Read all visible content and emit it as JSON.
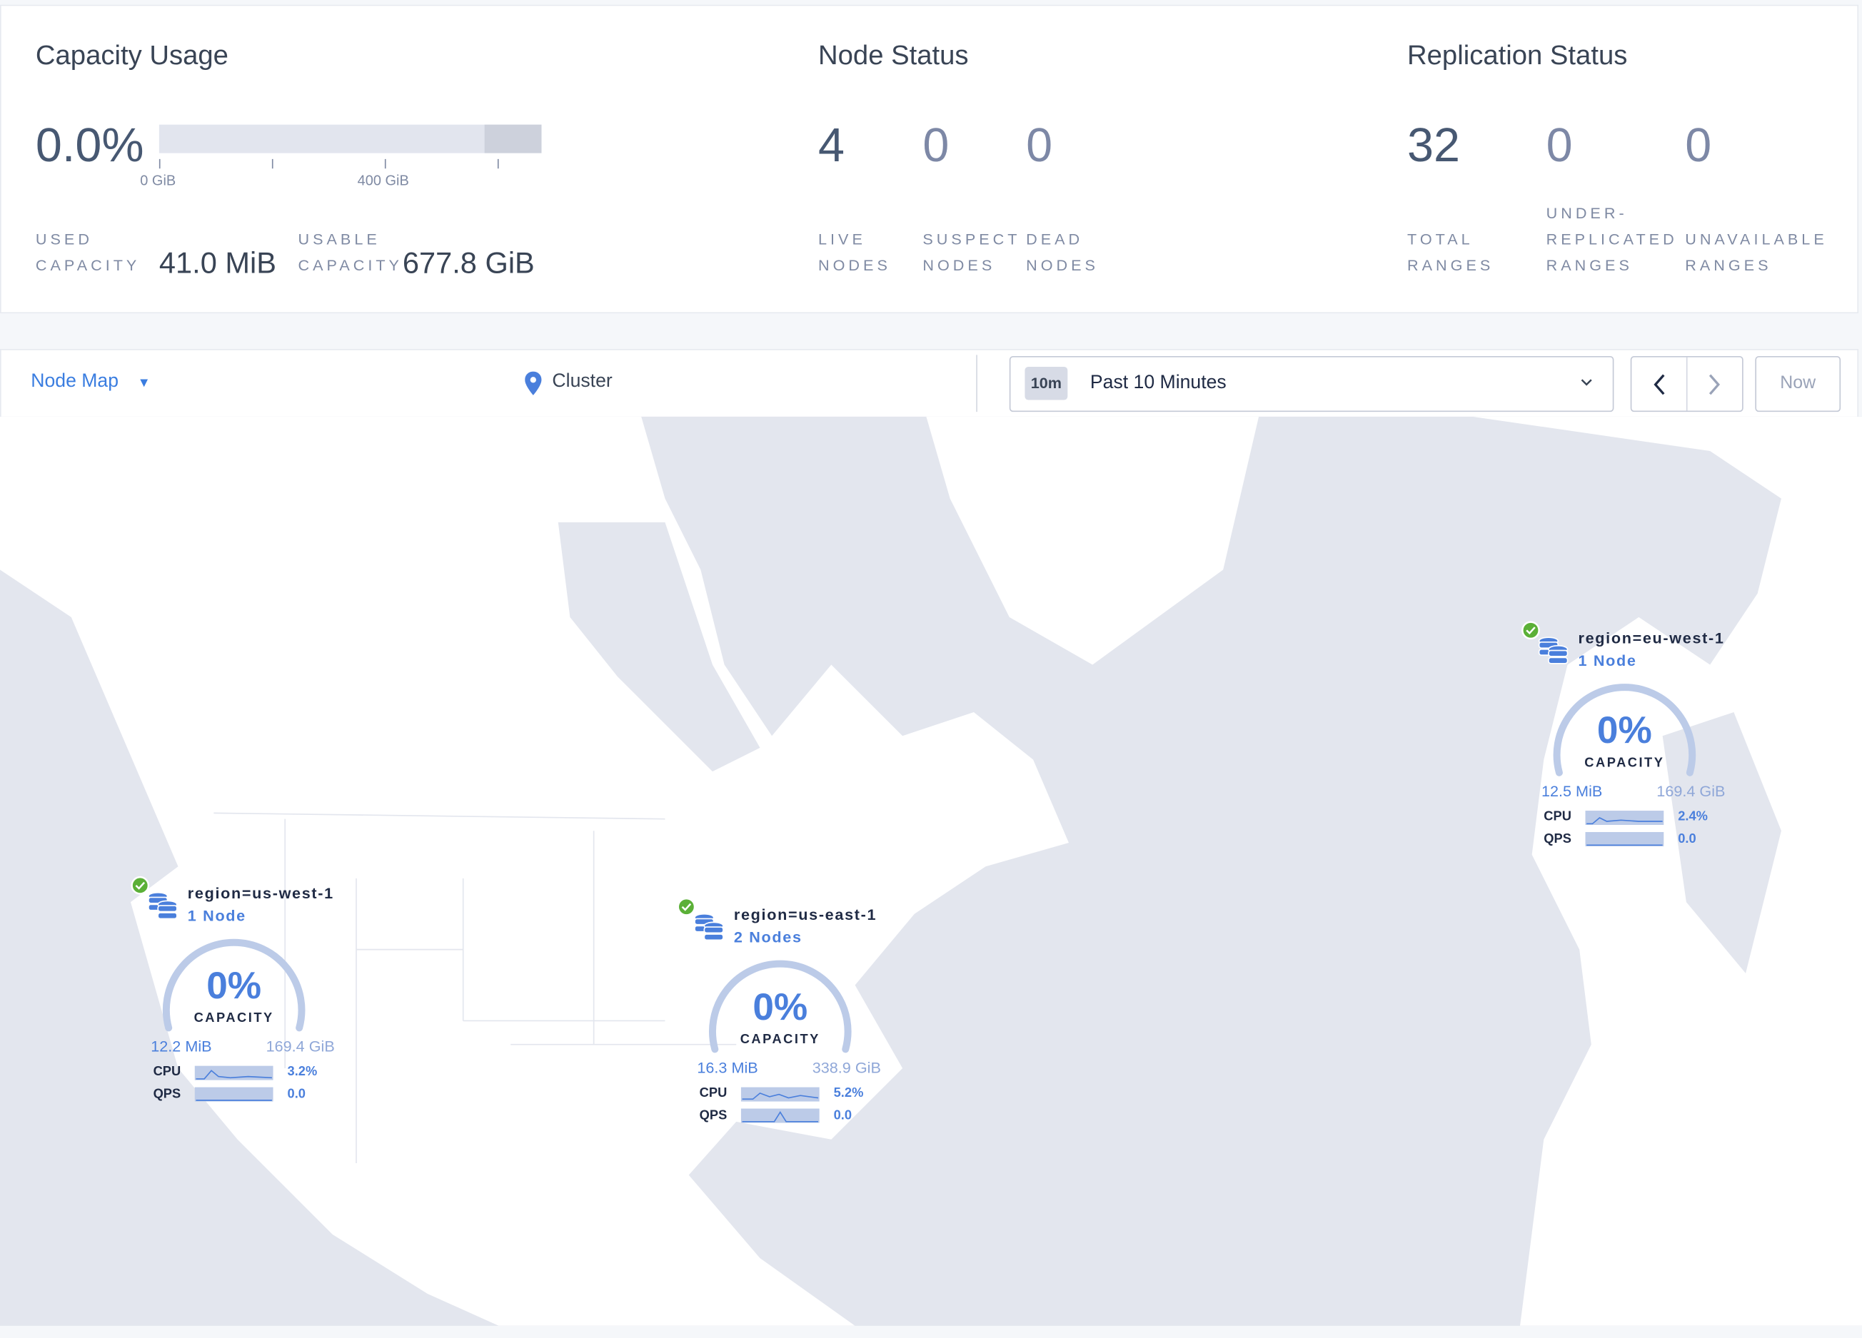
{
  "capacity": {
    "title": "Capacity Usage",
    "percent": "0.0%",
    "used_fraction": 0.0,
    "ticks": [
      "0 GiB",
      "400 GiB"
    ],
    "used_label_1": "USED",
    "used_label_2": "CAPACITY",
    "used_value": "41.0 MiB",
    "usable_label_1": "USABLE",
    "usable_label_2": "CAPACITY",
    "usable_value": "677.8 GiB"
  },
  "node_status": {
    "title": "Node Status",
    "live": "4",
    "live_l1": "LIVE",
    "live_l2": "NODES",
    "suspect": "0",
    "suspect_l1": "SUSPECT",
    "suspect_l2": "NODES",
    "dead": "0",
    "dead_l1": "DEAD",
    "dead_l2": "NODES"
  },
  "replication": {
    "title": "Replication Status",
    "total": "32",
    "total_l1": "TOTAL",
    "total_l2": "RANGES",
    "under": "0",
    "under_l0": "UNDER-",
    "under_l1": "REPLICATED",
    "under_l2": "RANGES",
    "unavail": "0",
    "unavail_l1": "UNAVAILABLE",
    "unavail_l2": "RANGES"
  },
  "toolbar": {
    "view": "Node Map",
    "breadcrumb": "Cluster",
    "time_badge": "10m",
    "time_range": "Past 10 Minutes",
    "now": "Now"
  },
  "colors": {
    "accent": "#4a7fdc",
    "healthy": "#5bb037",
    "gauge_track": "#bccbe8"
  },
  "nodes": [
    {
      "region": "region=us-west-1",
      "count": "1 Node",
      "capacity_pct": "0%",
      "capacity_label": "CAPACITY",
      "used": "12.2 MiB",
      "total": "169.4 GiB",
      "cpu_label": "CPU",
      "cpu": "3.2%",
      "qps_label": "QPS",
      "qps": "0.0",
      "status": "healthy"
    },
    {
      "region": "region=us-east-1",
      "count": "2 Nodes",
      "capacity_pct": "0%",
      "capacity_label": "CAPACITY",
      "used": "16.3 MiB",
      "total": "338.9 GiB",
      "cpu_label": "CPU",
      "cpu": "5.2%",
      "qps_label": "QPS",
      "qps": "0.0",
      "status": "healthy"
    },
    {
      "region": "region=eu-west-1",
      "count": "1 Node",
      "capacity_pct": "0%",
      "capacity_label": "CAPACITY",
      "used": "12.5 MiB",
      "total": "169.4 GiB",
      "cpu_label": "CPU",
      "cpu": "2.4%",
      "qps_label": "QPS",
      "qps": "0.0",
      "status": "healthy"
    }
  ]
}
